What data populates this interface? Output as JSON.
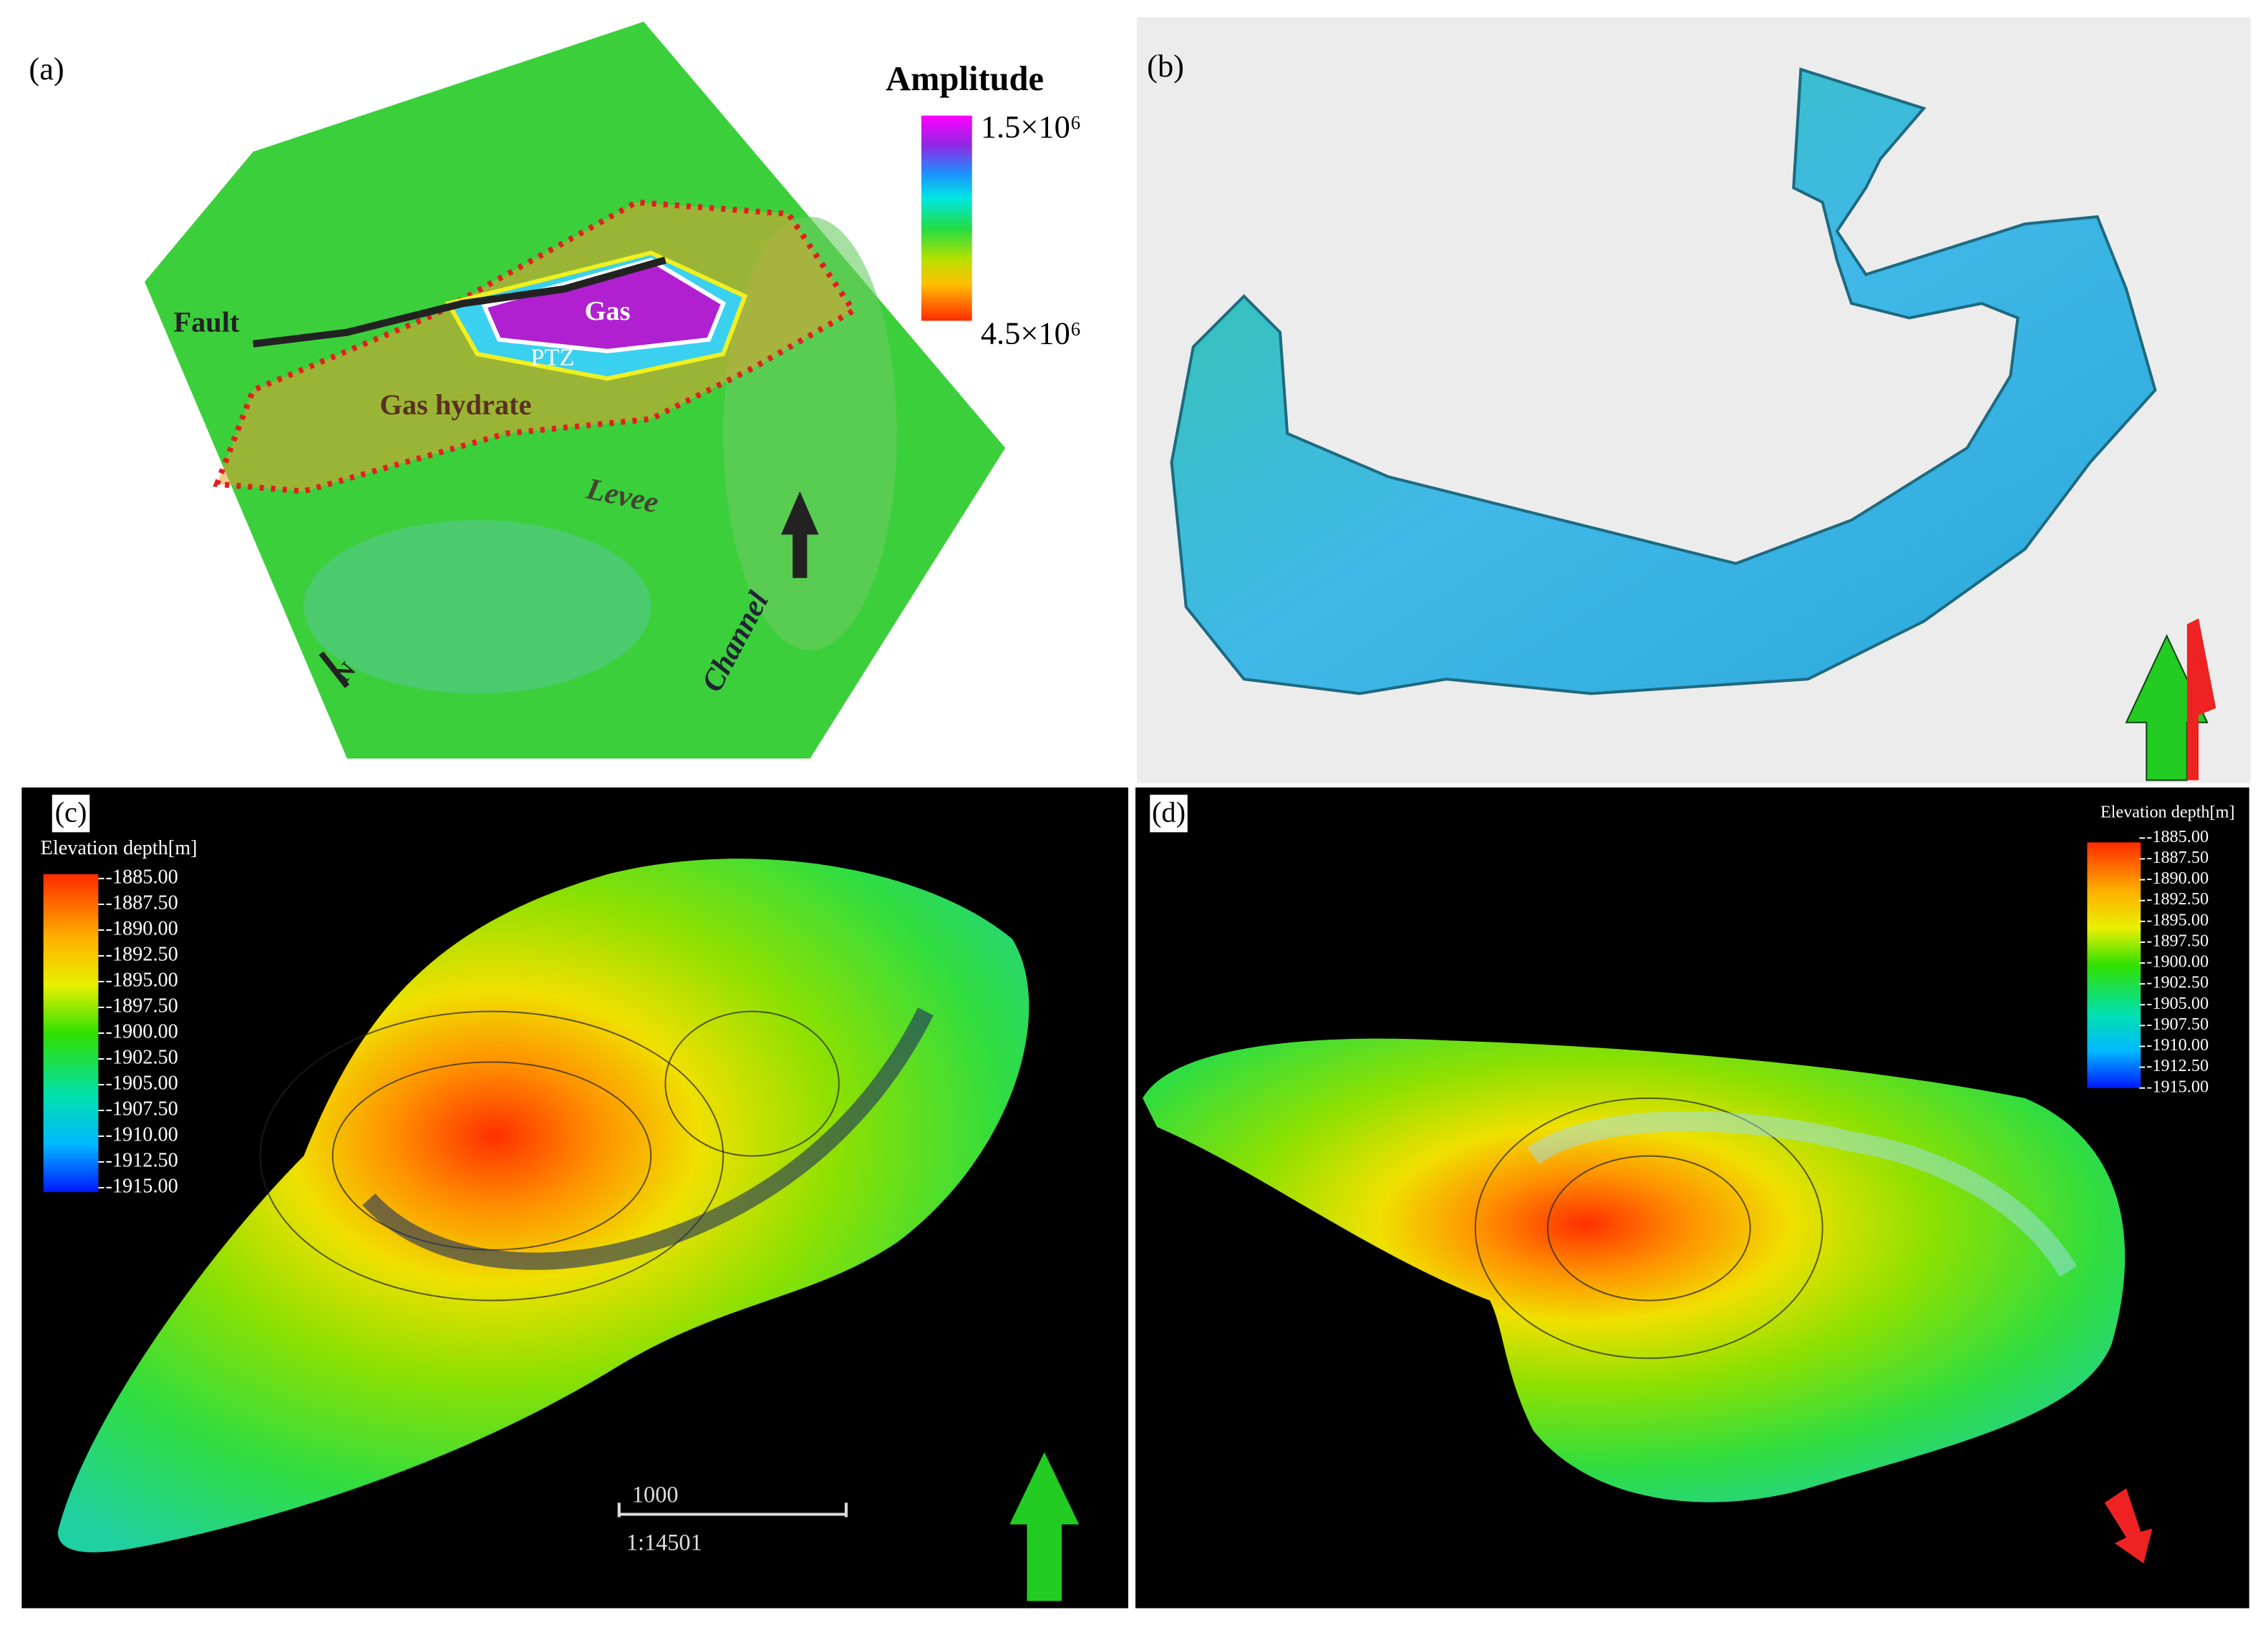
{
  "panels": [
    {
      "label": "(a)",
      "colorbar": {
        "title": "Amplitude",
        "ticks": [
          "1.5×10⁶",
          "4.5×10⁶"
        ]
      },
      "annotations": {
        "fault": "Fault",
        "gas": "Gas",
        "ptz": "PTZ",
        "gas_hydrate": "Gas hydrate",
        "levee": "Levee",
        "channel": "Channel",
        "north": "N"
      }
    },
    {
      "label": "(b)"
    },
    {
      "label": "(c)",
      "colorbar": {
        "title": "Elevation depth[m]",
        "ticks": [
          "-1885.00",
          "-1887.50",
          "-1890.00",
          "-1892.50",
          "-1895.00",
          "-1897.50",
          "-1900.00",
          "-1902.50",
          "-1905.00",
          "-1907.50",
          "-1910.00",
          "-1912.50",
          "-1915.00"
        ]
      },
      "scale_bar": {
        "length": "1000",
        "ratio": "1:14501"
      }
    },
    {
      "label": "(d)",
      "colorbar": {
        "title": "Elevation depth[m]",
        "ticks": [
          "-1885.00",
          "-1887.50",
          "-1890.00",
          "-1892.50",
          "-1895.00",
          "-1897.50",
          "-1900.00",
          "-1902.50",
          "-1905.00",
          "-1907.50",
          "-1910.00",
          "-1912.50",
          "-1915.00"
        ]
      }
    }
  ]
}
